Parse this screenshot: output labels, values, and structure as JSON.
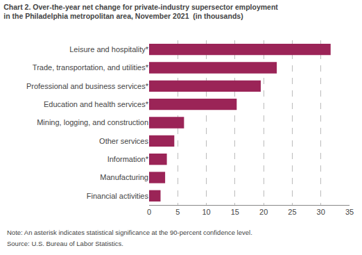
{
  "chart_data": {
    "type": "bar",
    "orientation": "horizontal",
    "title": "Chart 2. Over-the-year net change for private-industry supersector employment",
    "subtitle": "in the Philadelphia metropolitan area, November 2021  (in thousands)",
    "categories": [
      "Financial activities",
      "Manufacturing",
      "Information*",
      "Other services",
      "Mining, logging, and construction",
      "Education and health services*",
      "Professional and business services*",
      "Trade, transportation, and utilities*",
      "Leisure and hospitality*"
    ],
    "values": [
      2.0,
      2.8,
      3.1,
      4.4,
      6.1,
      15.3,
      19.5,
      22.3,
      31.7
    ],
    "color": "#9b2457",
    "xlim": [
      0,
      35
    ],
    "xticks": [
      0,
      5,
      10,
      15,
      20,
      25,
      30,
      35
    ],
    "grid": true,
    "annotations": [
      "Note: An asterisk indicates statistical significance at the 90-percent confidence level.",
      "Source: U.S. Bureau of Labor Statistics."
    ]
  }
}
